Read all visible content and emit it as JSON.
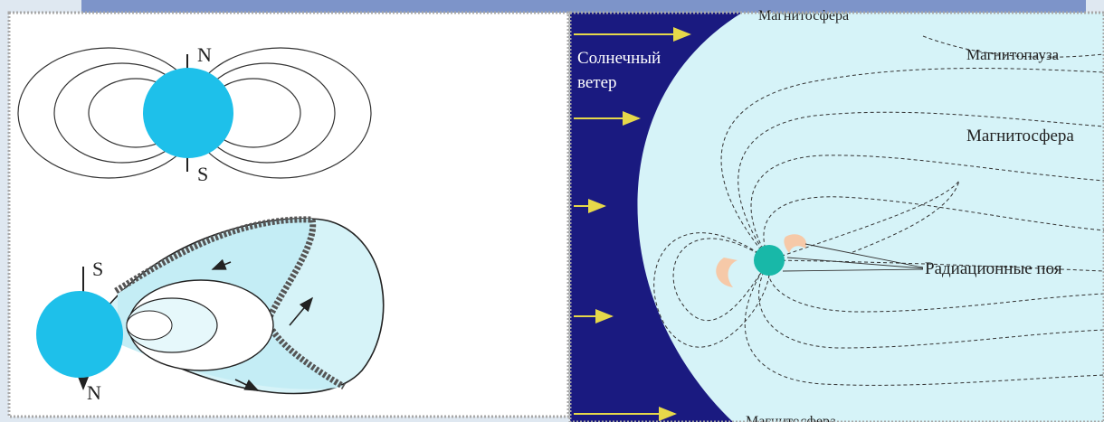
{
  "dipole": {
    "north_label": "N",
    "south_label": "S"
  },
  "compressed": {
    "south_label": "S",
    "north_label": "N"
  },
  "magnetosphere": {
    "top_label": "Магнитосфера",
    "solar_wind_line1": "Солнечный",
    "solar_wind_line2": "ветер",
    "magnetopause_label": "Магнитопауза",
    "magnetosphere_label": "Магнитосфера",
    "radiation_belts_label": "Радиационные поя",
    "bottom_label": "Магнитосфера"
  },
  "colors": {
    "planet": "#1ec0ea",
    "light_blue": "#d6f3f8",
    "solar_wind_bg": "#1a1a80",
    "arrow": "#e6d84a",
    "belts": "#f6c9a8",
    "frame": "#b0b0b0"
  }
}
